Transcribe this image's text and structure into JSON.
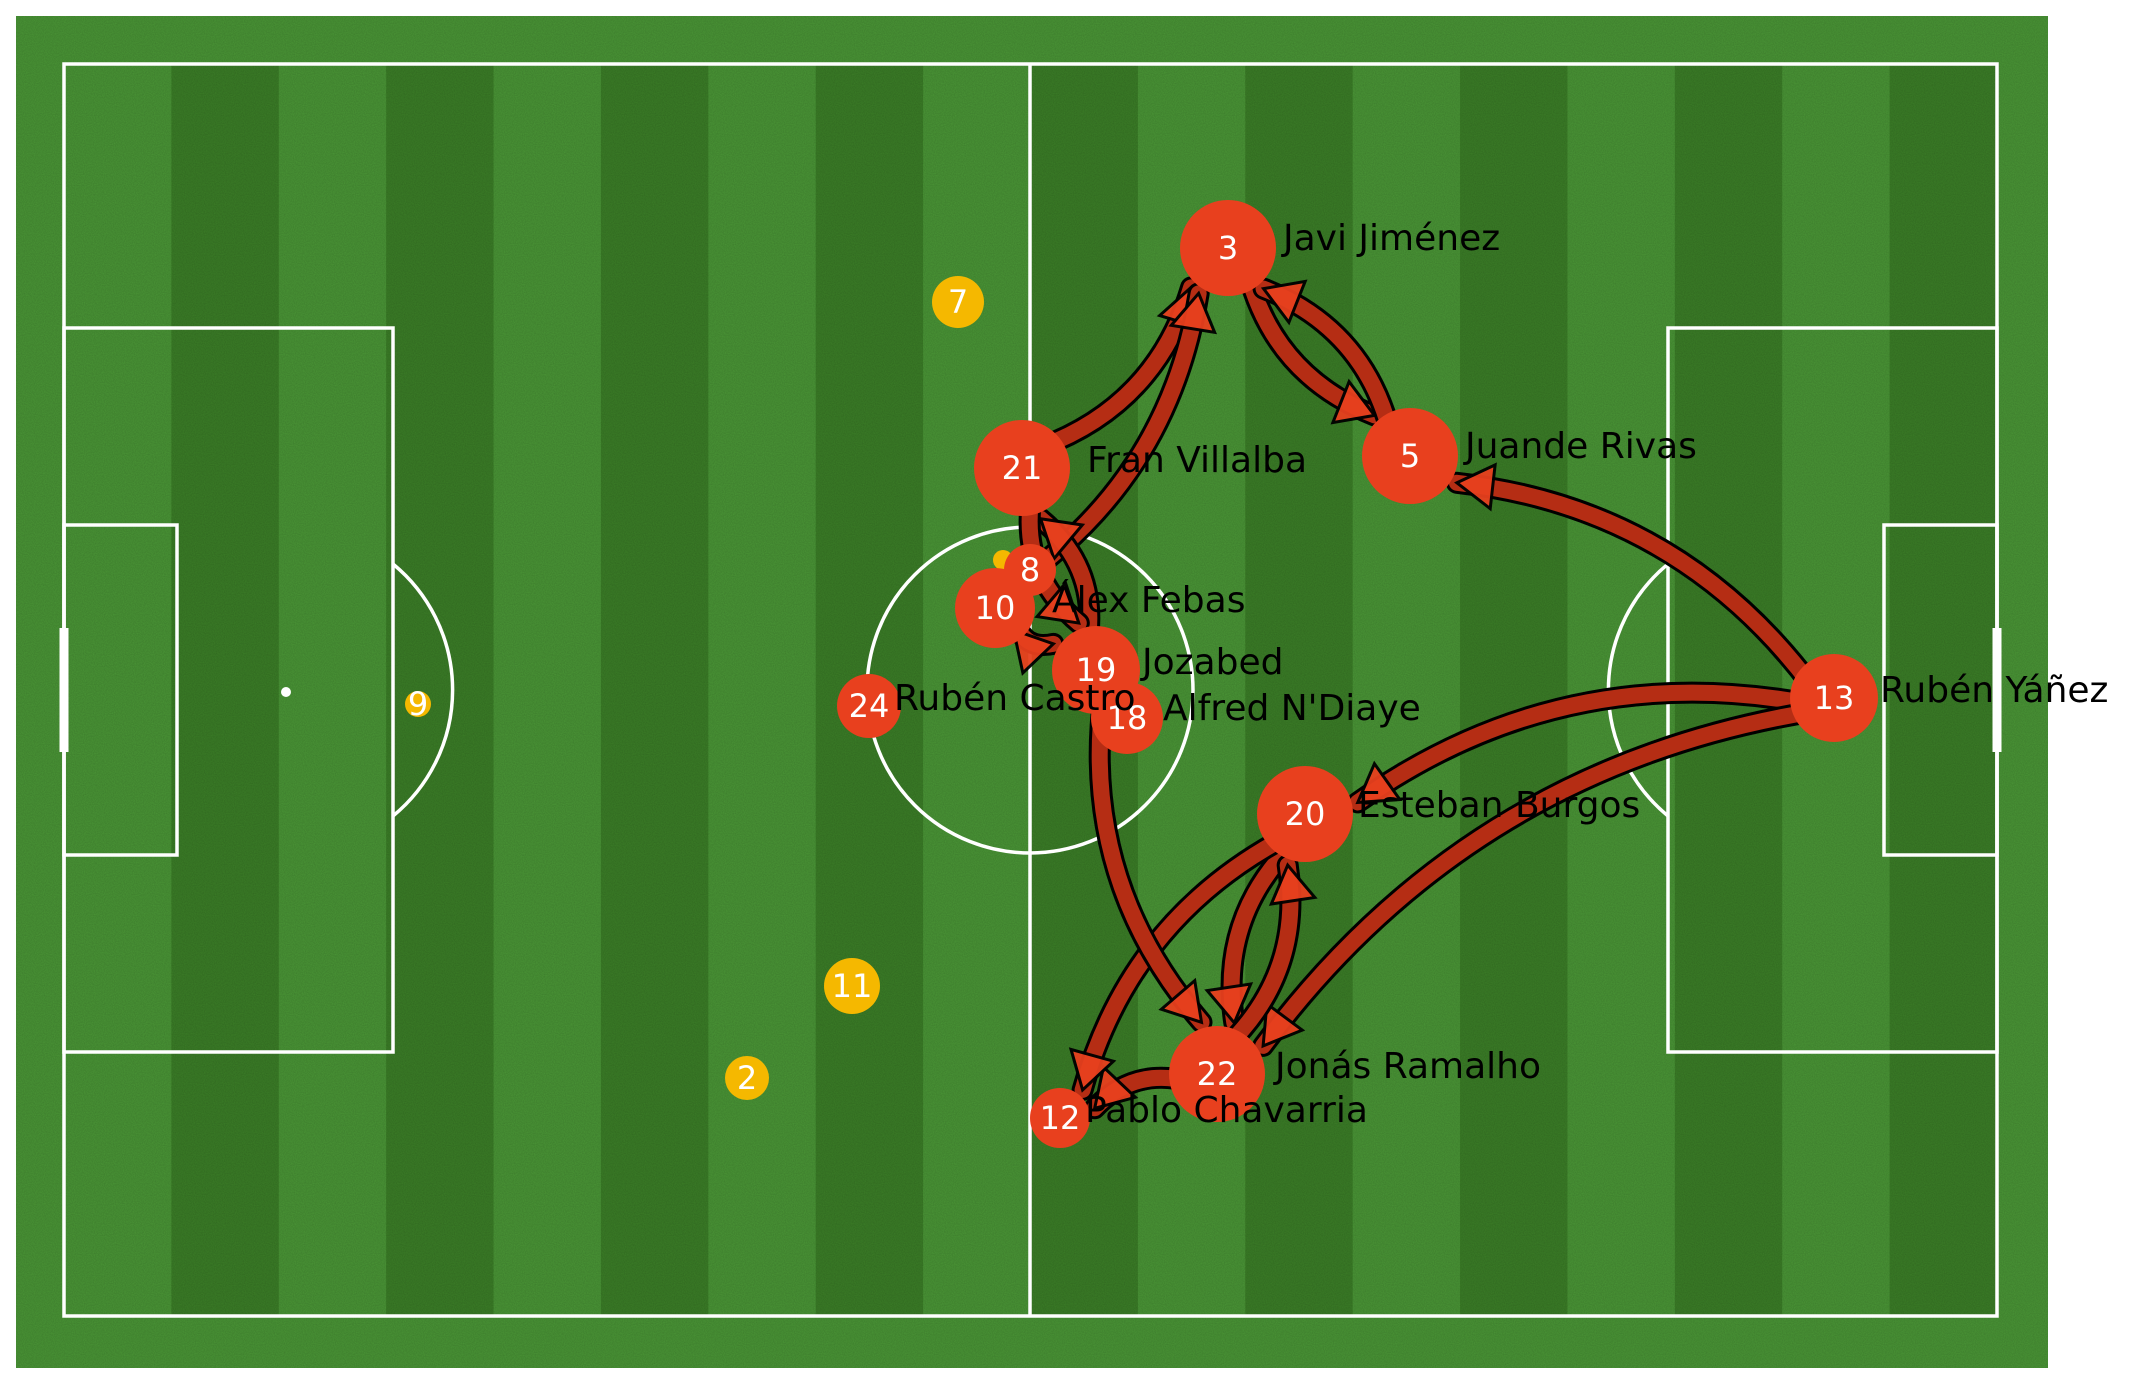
{
  "pitch": {
    "grass_dark": "#3b7e27",
    "grass_light": "#4a9636",
    "border": "#3a7a26",
    "line_color": "#ffffff"
  },
  "colors": {
    "team": "#e8401e",
    "opponent": "#f5b800",
    "pass_fill": "#b52d14",
    "pass_outline": "#000000"
  },
  "team_players": [
    {
      "id": "p3",
      "number": "3",
      "name": "Javi Jiménez"
    },
    {
      "id": "p5",
      "number": "5",
      "name": "Juande Rivas"
    },
    {
      "id": "p21",
      "number": "21",
      "name": "Fran Villalba"
    },
    {
      "id": "p8",
      "number": "8",
      "name": ""
    },
    {
      "id": "p10",
      "number": "10",
      "name": "Álex Febas"
    },
    {
      "id": "p19",
      "number": "19",
      "name": "Jozabed"
    },
    {
      "id": "p18",
      "number": "18",
      "name": "Alfred N'Diaye"
    },
    {
      "id": "p24",
      "number": "24",
      "name": "Rubén Castro"
    },
    {
      "id": "p13",
      "number": "13",
      "name": "Rubén Yáñez"
    },
    {
      "id": "p20",
      "number": "20",
      "name": "Esteban Burgos"
    },
    {
      "id": "p22",
      "number": "22",
      "name": "Jonás Ramalho"
    },
    {
      "id": "p12",
      "number": "12",
      "name": "Pablo Chavarria"
    }
  ],
  "opponent_players": [
    {
      "id": "o7",
      "number": "7"
    },
    {
      "id": "o9",
      "number": "9"
    },
    {
      "id": "o11",
      "number": "11"
    },
    {
      "id": "o2",
      "number": "2"
    },
    {
      "id": "o14",
      "number": ""
    }
  ],
  "passes": [
    {
      "from": "p21",
      "to": "p3"
    },
    {
      "from": "p10",
      "to": "p3"
    },
    {
      "from": "p3",
      "to": "p5"
    },
    {
      "from": "p5",
      "to": "p3"
    },
    {
      "from": "p13",
      "to": "p5"
    },
    {
      "from": "p13",
      "to": "p20"
    },
    {
      "from": "p13",
      "to": "p22"
    },
    {
      "from": "p20",
      "to": "p22"
    },
    {
      "from": "p22",
      "to": "p20"
    },
    {
      "from": "p22",
      "to": "p12"
    },
    {
      "from": "p20",
      "to": "p12"
    },
    {
      "from": "p19",
      "to": "p22"
    },
    {
      "from": "p19",
      "to": "p21"
    },
    {
      "from": "p21",
      "to": "p19"
    },
    {
      "from": "p10",
      "to": "p19"
    }
  ]
}
